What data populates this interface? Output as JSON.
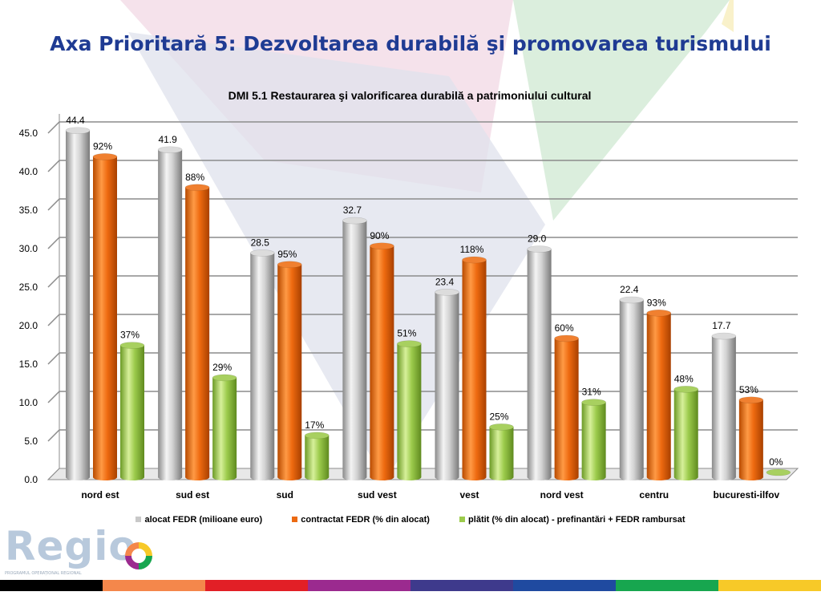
{
  "slide": {
    "title": "Axa Prioritară  5: Dezvoltarea durabilă şi promovarea turismului",
    "logo_text": "Regio",
    "logo_subtitle": "PROGRAMUL OPERAȚIONAL REGIONAL",
    "stripe_colors": [
      "#000000",
      "#f4874b",
      "#e21f26",
      "#9b2a8f",
      "#3e3a8c",
      "#1f4aa0",
      "#17a64f",
      "#f7c928"
    ]
  },
  "chart_data": {
    "type": "bar",
    "title": "DMI 5.1 Restaurarea şi valorificarea durabilă a patrimoniului cultural",
    "categories": [
      "nord est",
      "sud est",
      "sud",
      "sud vest",
      "vest",
      "nord vest",
      "centru",
      "bucuresti-ilfov"
    ],
    "series": [
      {
        "name": "alocat FEDR (milioane euro)",
        "color": "#c8c8c8",
        "values": [
          44.4,
          41.9,
          28.5,
          32.7,
          23.4,
          29.0,
          22.4,
          17.7
        ],
        "labels": [
          "44.4",
          "41.9",
          "28.5",
          "32.7",
          "23.4",
          "29.0",
          "22.4",
          "17.7"
        ]
      },
      {
        "name": "contractat FEDR (% din alocat)",
        "color": "#ec6a12",
        "values": [
          41.0,
          37.0,
          27.0,
          29.4,
          27.6,
          17.4,
          20.7,
          9.4
        ],
        "labels": [
          "92%",
          "88%",
          "95%",
          "90%",
          "118%",
          "60%",
          "93%",
          "53%"
        ]
      },
      {
        "name": "plătit (% din alocat) - prefinantări + FEDR rambursat",
        "color": "#9ccb4c",
        "values": [
          16.5,
          12.3,
          4.8,
          16.7,
          5.9,
          9.1,
          10.8,
          0.0
        ],
        "labels": [
          "37%",
          "29%",
          "17%",
          "51%",
          "25%",
          "31%",
          "48%",
          "0%"
        ]
      }
    ],
    "yticks": [
      "0.0",
      "5.0",
      "10.0",
      "15.0",
      "20.0",
      "25.0",
      "30.0",
      "35.0",
      "40.0",
      "45.0"
    ],
    "ylim": [
      0,
      45
    ],
    "grid": true,
    "legend": "bottom"
  }
}
